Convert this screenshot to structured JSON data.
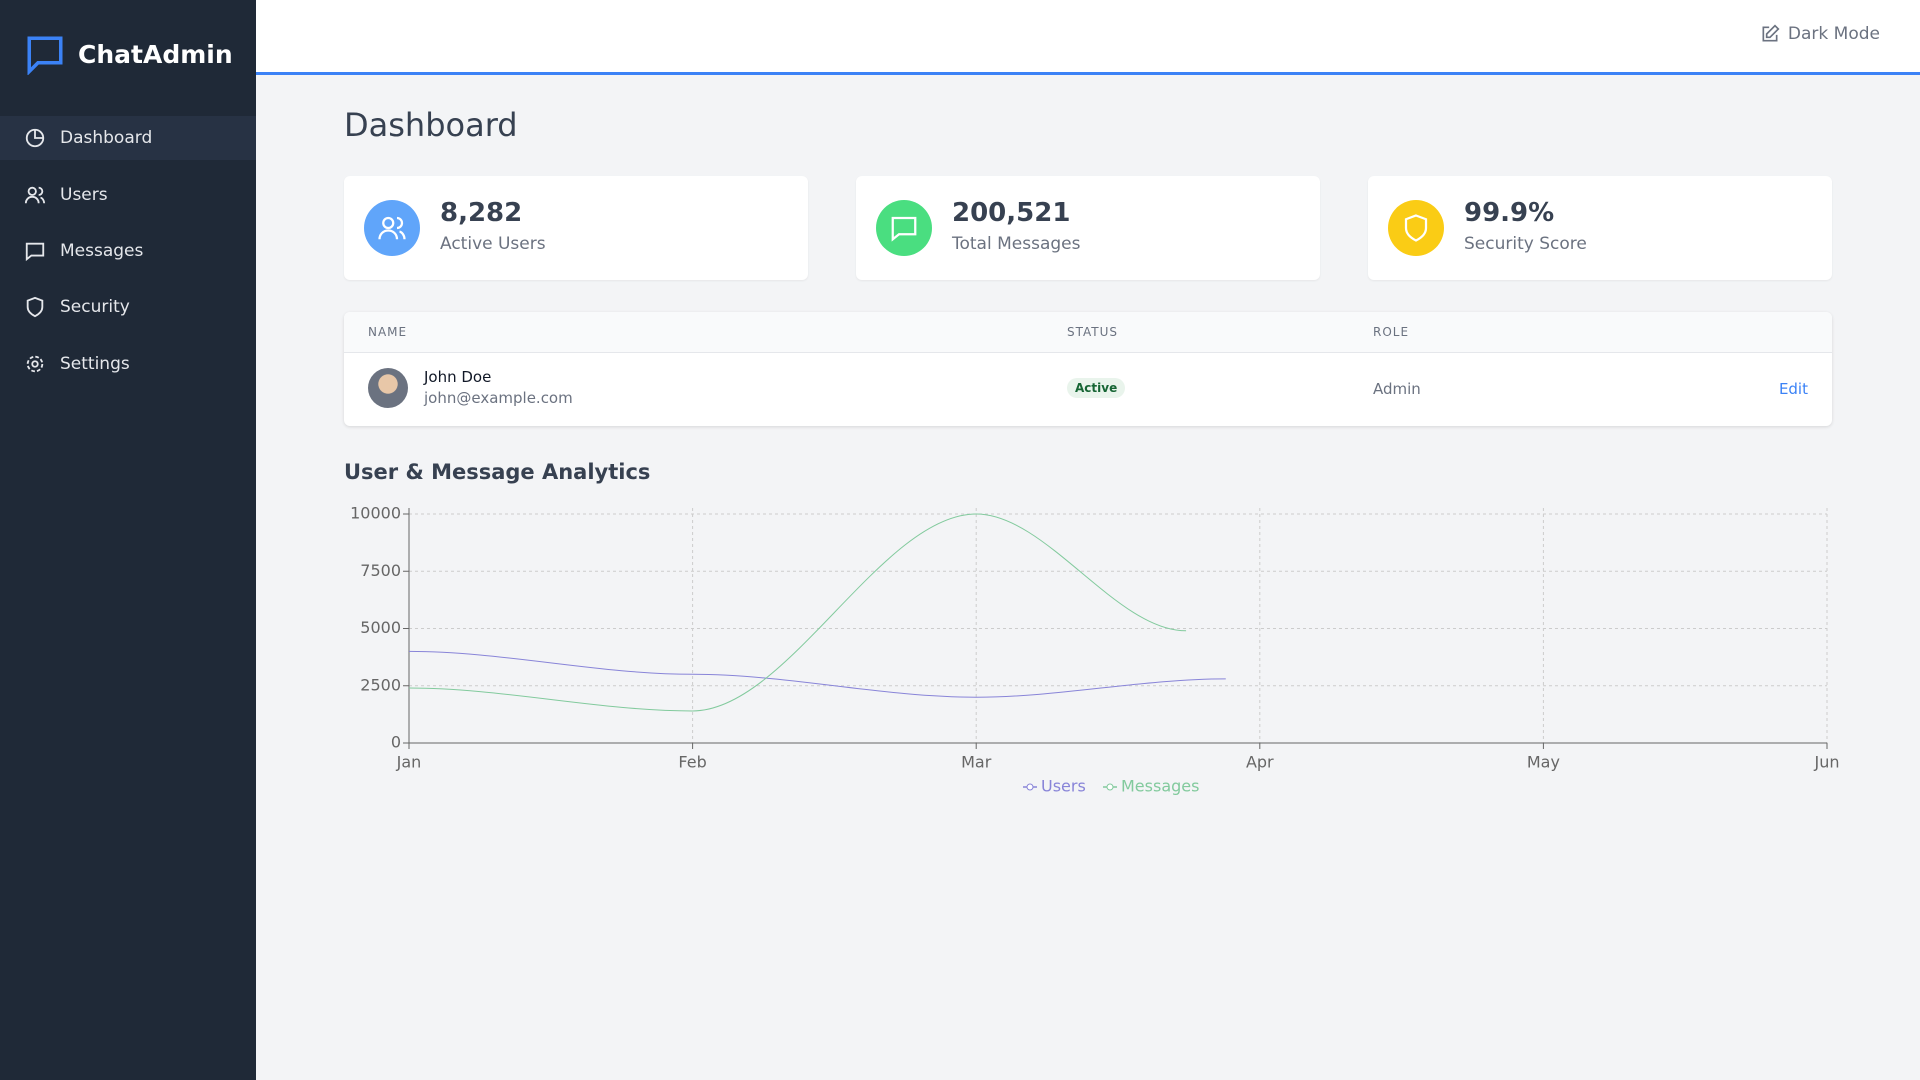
{
  "sidebar": {
    "brand": "ChatAdmin",
    "nav": [
      "Dashboard",
      "Users",
      "Messages",
      "Security",
      "Settings"
    ]
  },
  "header": {
    "dark_mode": "Dark Mode"
  },
  "page_title": "Dashboard",
  "stats": [
    {
      "value": "8,282",
      "label": "Active Users"
    },
    {
      "value": "200,521",
      "label": "Total Messages"
    },
    {
      "value": "99.9%",
      "label": "Security Score"
    }
  ],
  "table": {
    "columns": [
      "NAME",
      "STATUS",
      "ROLE"
    ],
    "rows": [
      {
        "name": "John Doe",
        "email": "john@example.com",
        "status": "Active",
        "role": "Admin",
        "action": "Edit"
      }
    ]
  },
  "chart_data": {
    "type": "line",
    "title": "User & Message Analytics",
    "xlim": [
      0,
      5
    ],
    "xticks": [
      {
        "value": 0,
        "label": "Jan"
      },
      {
        "value": 1,
        "label": "Feb"
      },
      {
        "value": 2,
        "label": "Mar"
      },
      {
        "value": 3,
        "label": "Apr"
      },
      {
        "value": 4,
        "label": "May"
      },
      {
        "value": 5,
        "label": "Jun"
      }
    ],
    "ylim": [
      0,
      10000
    ],
    "yticks": [
      0,
      2500,
      5000,
      7500,
      10000
    ],
    "grid": true,
    "legend": "bottom",
    "series": [
      {
        "name": "Users",
        "color": "#8884d8",
        "x": [
          0,
          1,
          2,
          2.88
        ],
        "values": [
          4000,
          3000,
          2000,
          2800
        ]
      },
      {
        "name": "Messages",
        "color": "#82ca9d",
        "x": [
          0,
          1,
          2,
          2.74
        ],
        "values": [
          2400,
          1400,
          10000,
          4900
        ]
      }
    ]
  }
}
